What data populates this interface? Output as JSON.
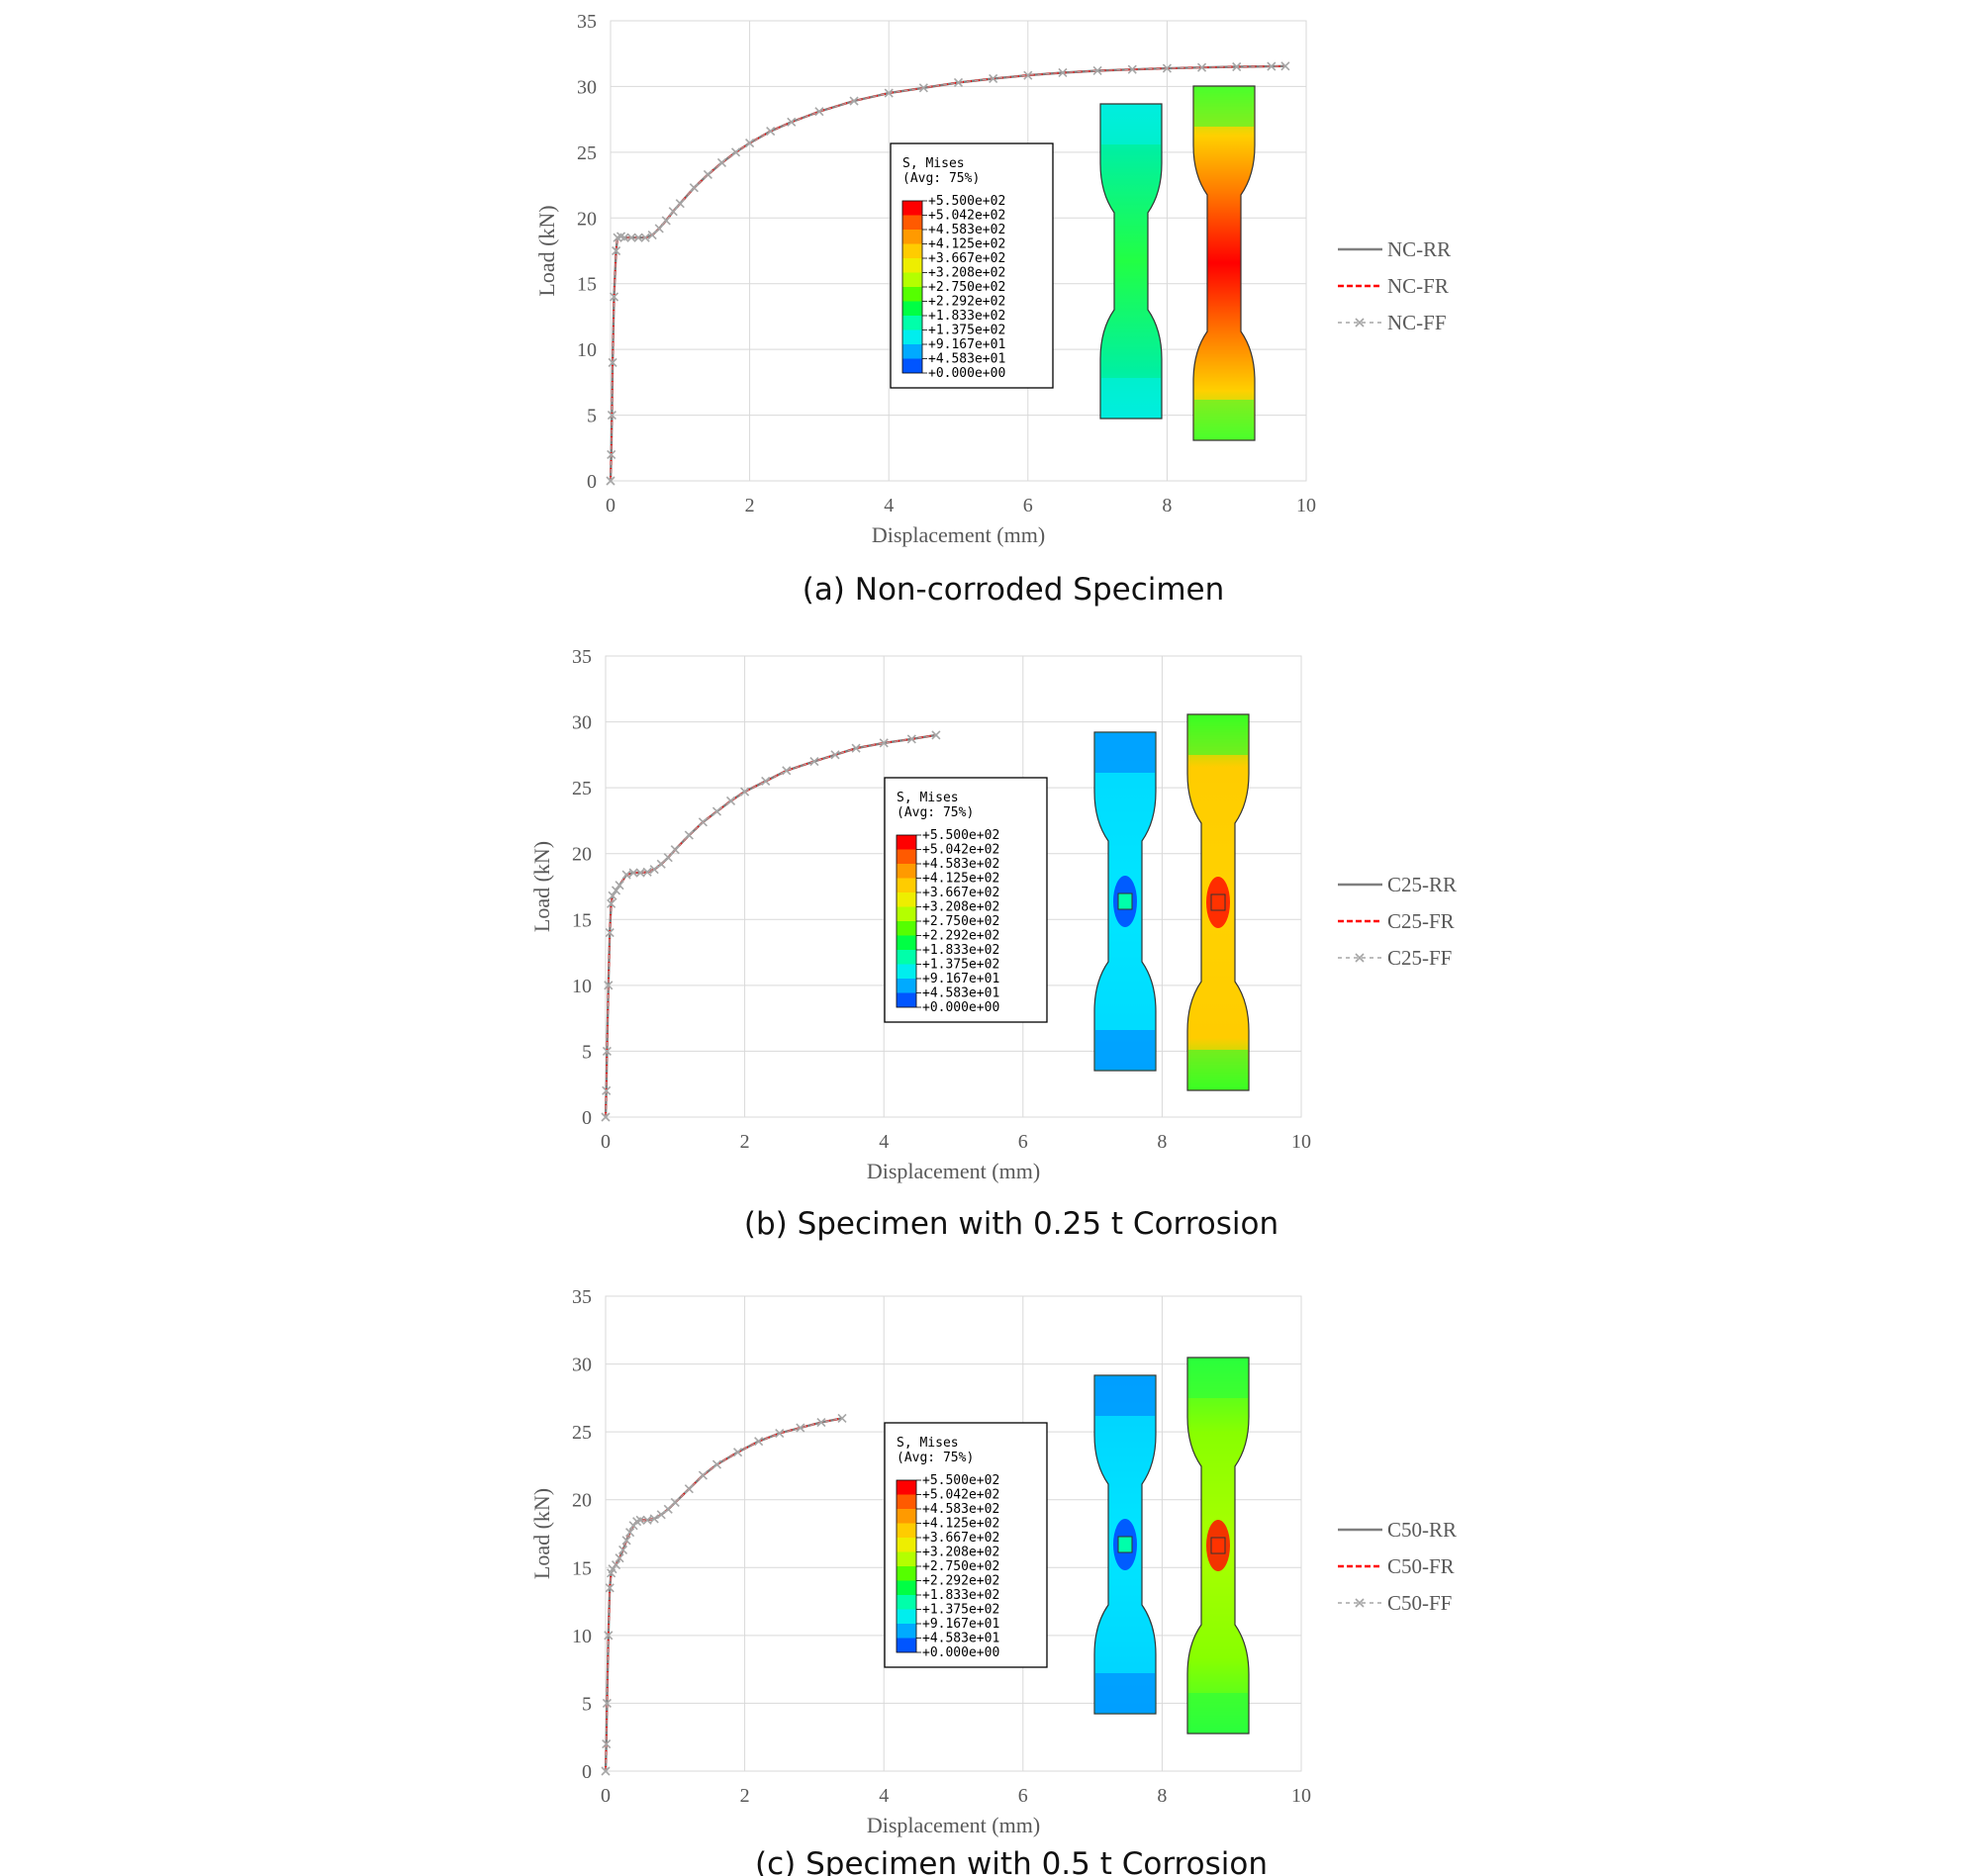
{
  "colormap": {
    "title_line1": "S, Mises",
    "title_line2": "(Avg: 75%)",
    "labels": [
      "+5.500e+02",
      "+5.042e+02",
      "+4.583e+02",
      "+4.125e+02",
      "+3.667e+02",
      "+3.208e+02",
      "+2.750e+02",
      "+2.292e+02",
      "+1.833e+02",
      "+1.375e+02",
      "+9.167e+01",
      "+4.583e+01",
      "+0.000e+00"
    ],
    "colors": [
      "#ff0000",
      "#ff5a00",
      "#ff9a00",
      "#ffcc00",
      "#eeee00",
      "#b4ff00",
      "#55ff00",
      "#00ff44",
      "#00ffaa",
      "#00eeee",
      "#00aaff",
      "#0055ff",
      "#0000ff"
    ]
  },
  "chart_data": [
    {
      "type": "line",
      "caption": "(a) Non-corroded Specimen",
      "xlabel": "Displacement (mm)",
      "ylabel": "Load (kN)",
      "xlim": [
        0,
        10
      ],
      "ylim": [
        0,
        35
      ],
      "xticks": [
        "0",
        "2",
        "4",
        "6",
        "8",
        "10"
      ],
      "yticks": [
        "0",
        "5",
        "10",
        "15",
        "20",
        "25",
        "30",
        "35"
      ],
      "grid": true,
      "legend_position": "right",
      "series": [
        {
          "name": "NC-RR",
          "color": "#7f7f7f"
        },
        {
          "name": "NC-FR",
          "color": "#ff0000"
        },
        {
          "name": "NC-FF",
          "color": "#a6a6a6"
        }
      ],
      "x": [
        0,
        0.01,
        0.02,
        0.03,
        0.05,
        0.08,
        0.1,
        0.15,
        0.2,
        0.3,
        0.4,
        0.5,
        0.6,
        0.7,
        0.8,
        0.9,
        1.0,
        1.2,
        1.4,
        1.6,
        1.8,
        2.0,
        2.3,
        2.6,
        3.0,
        3.5,
        4.0,
        4.5,
        5.0,
        5.5,
        6.0,
        6.5,
        7.0,
        7.5,
        8.0,
        8.5,
        9.0,
        9.5,
        9.7
      ],
      "y": [
        0,
        2,
        5,
        9,
        14,
        17.5,
        18.5,
        18.6,
        18.5,
        18.5,
        18.5,
        18.5,
        18.7,
        19.2,
        19.8,
        20.5,
        21.1,
        22.3,
        23.3,
        24.2,
        25.0,
        25.7,
        26.6,
        27.3,
        28.1,
        28.9,
        29.5,
        29.9,
        30.3,
        30.6,
        30.85,
        31.05,
        31.2,
        31.3,
        31.38,
        31.45,
        31.5,
        31.53,
        31.55
      ]
    },
    {
      "type": "line",
      "caption": "(b) Specimen with 0.25 t Corrosion",
      "xlabel": "Displacement (mm)",
      "ylabel": "Load (kN)",
      "xlim": [
        0,
        10
      ],
      "ylim": [
        0,
        35
      ],
      "xticks": [
        "0",
        "2",
        "4",
        "6",
        "8",
        "10"
      ],
      "yticks": [
        "0",
        "5",
        "10",
        "15",
        "20",
        "25",
        "30",
        "35"
      ],
      "grid": true,
      "legend_position": "right",
      "series": [
        {
          "name": "C25-RR",
          "color": "#7f7f7f"
        },
        {
          "name": "C25-FR",
          "color": "#ff0000"
        },
        {
          "name": "C25-FF",
          "color": "#a6a6a6"
        }
      ],
      "x": [
        0,
        0.01,
        0.02,
        0.04,
        0.06,
        0.08,
        0.1,
        0.15,
        0.2,
        0.3,
        0.4,
        0.5,
        0.6,
        0.7,
        0.8,
        0.9,
        1.0,
        1.2,
        1.4,
        1.6,
        1.8,
        2.0,
        2.3,
        2.6,
        3.0,
        3.3,
        3.6,
        4.0,
        4.4,
        4.75
      ],
      "y": [
        0,
        2,
        5,
        10,
        14,
        16.2,
        16.8,
        17.2,
        17.6,
        18.4,
        18.55,
        18.55,
        18.6,
        18.8,
        19.2,
        19.7,
        20.3,
        21.4,
        22.4,
        23.2,
        24.0,
        24.7,
        25.5,
        26.3,
        27.0,
        27.5,
        28.0,
        28.4,
        28.7,
        29.0
      ]
    },
    {
      "type": "line",
      "caption": "(c) Specimen with 0.5 t Corrosion",
      "xlabel": "Displacement (mm)",
      "ylabel": "Load (kN)",
      "xlim": [
        0,
        10
      ],
      "ylim": [
        0,
        35
      ],
      "xticks": [
        "0",
        "2",
        "4",
        "6",
        "8",
        "10"
      ],
      "yticks": [
        "0",
        "5",
        "10",
        "15",
        "20",
        "25",
        "30",
        "35"
      ],
      "grid": true,
      "legend_position": "right",
      "series": [
        {
          "name": "C50-RR",
          "color": "#7f7f7f"
        },
        {
          "name": "C50-FR",
          "color": "#ff0000"
        },
        {
          "name": "C50-FF",
          "color": "#a6a6a6"
        }
      ],
      "x": [
        0,
        0.01,
        0.02,
        0.04,
        0.06,
        0.08,
        0.1,
        0.15,
        0.2,
        0.25,
        0.3,
        0.35,
        0.4,
        0.45,
        0.5,
        0.6,
        0.7,
        0.8,
        0.9,
        1.0,
        1.2,
        1.4,
        1.6,
        1.9,
        2.2,
        2.5,
        2.8,
        3.1,
        3.4
      ],
      "y": [
        0,
        2,
        5,
        10,
        13.5,
        14.6,
        14.9,
        15.2,
        15.7,
        16.3,
        17.0,
        17.6,
        18.1,
        18.4,
        18.5,
        18.5,
        18.6,
        18.9,
        19.3,
        19.8,
        20.8,
        21.8,
        22.6,
        23.5,
        24.3,
        24.9,
        25.3,
        25.7,
        26.0
      ]
    }
  ]
}
